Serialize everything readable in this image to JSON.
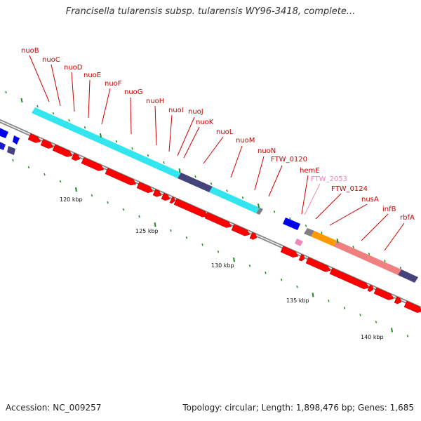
{
  "header": {
    "title": "Francisella tularensis subsp. tularensis WY96-3418, complete..."
  },
  "footer": {
    "accession": "Accession: NC_009257",
    "summary": "Topology: circular; Length: 1,898,476 bp; Genes: 1,685"
  },
  "genes": [
    {
      "name": "nuoB",
      "color": "#cc0000"
    },
    {
      "name": "nuoC",
      "color": "#cc0000"
    },
    {
      "name": "nuoD",
      "color": "#cc0000"
    },
    {
      "name": "nuoE",
      "color": "#cc0000"
    },
    {
      "name": "nuoF",
      "color": "#cc0000"
    },
    {
      "name": "nuoG",
      "color": "#cc0000"
    },
    {
      "name": "nuoH",
      "color": "#cc0000"
    },
    {
      "name": "nuoI",
      "color": "#cc0000"
    },
    {
      "name": "nuoJ",
      "color": "#cc0000"
    },
    {
      "name": "nuoK",
      "color": "#cc0000"
    },
    {
      "name": "nuoL",
      "color": "#cc0000"
    },
    {
      "name": "nuoM",
      "color": "#cc0000"
    },
    {
      "name": "nuoN",
      "color": "#cc0000"
    },
    {
      "name": "FTW_0120",
      "color": "#cc0000"
    },
    {
      "name": "hemE",
      "color": "#cc0000"
    },
    {
      "name": "FTW_2053",
      "color": "#ee88bb"
    },
    {
      "name": "FTW_0124",
      "color": "#cc0000"
    },
    {
      "name": "nusA",
      "color": "#cc0000"
    },
    {
      "name": "infB",
      "color": "#cc0000"
    },
    {
      "name": "rbfA",
      "color": "#cc0000"
    }
  ],
  "scale_ticks": [
    {
      "label": "120 kbp"
    },
    {
      "label": "125 kbp"
    },
    {
      "label": "130 kbp"
    },
    {
      "label": "135 kbp"
    },
    {
      "label": "140 kbp"
    }
  ],
  "colors": {
    "cds": "#ff0000",
    "cds_edge": "#aa0000",
    "cog_cyan": "#33e5ee",
    "cog_navy": "#44447a",
    "cog_orange": "#ff9900",
    "cog_salmon": "#f08080",
    "cog_gray": "#808080",
    "blue_gene": "#0000ee",
    "backbone": "#8a8a8a",
    "tick_green": "#228B22",
    "label_red": "#cc0000",
    "label_pink": "#ee88bb"
  }
}
